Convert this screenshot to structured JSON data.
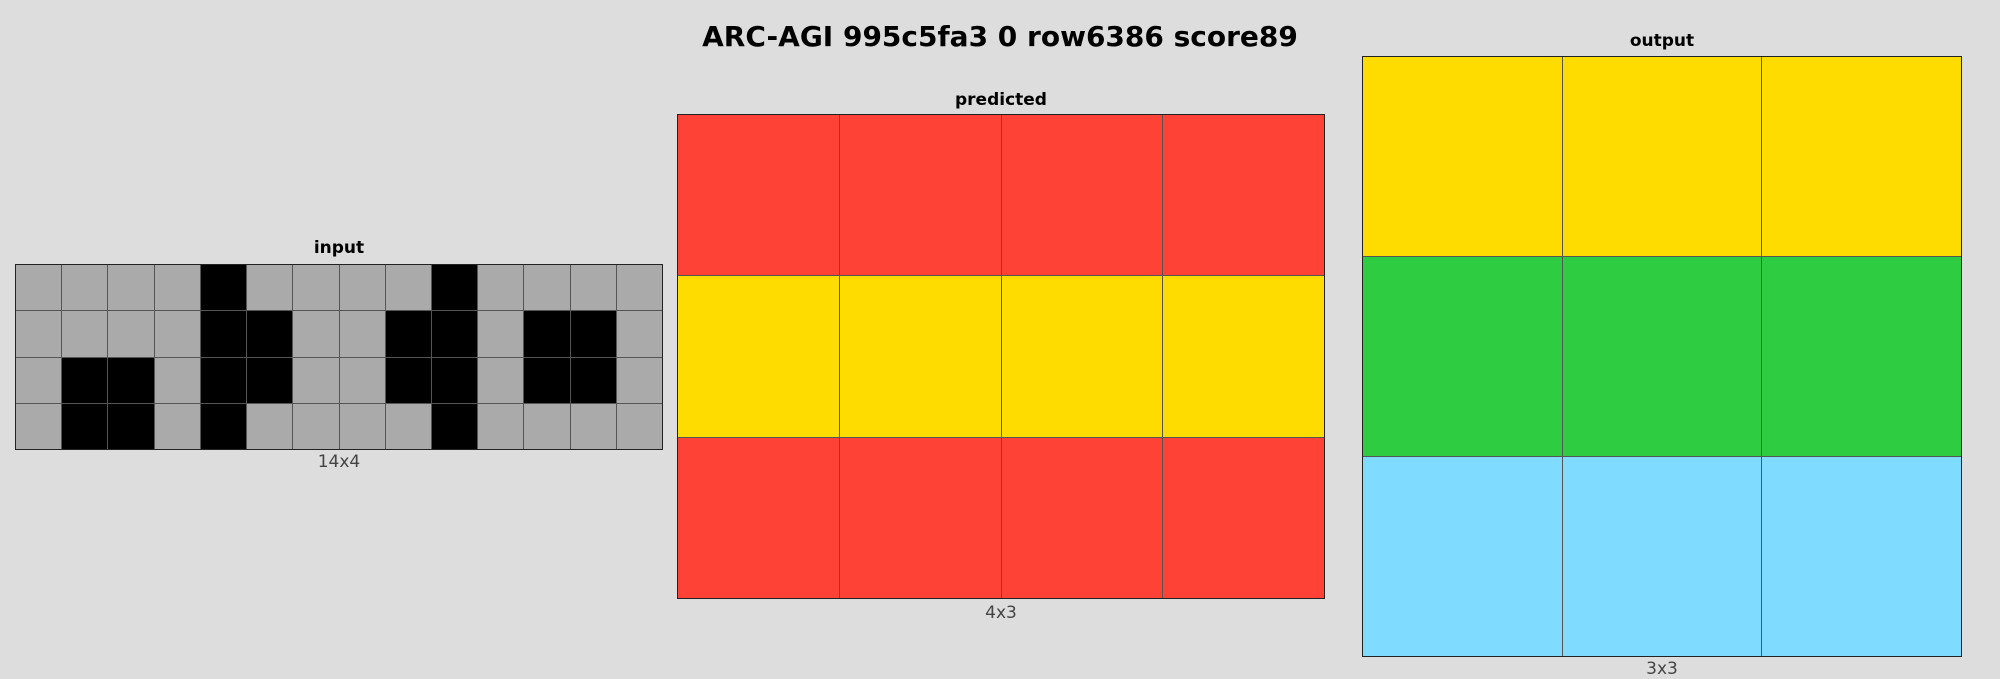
{
  "title": "ARC-AGI 995c5fa3 0 row6386 score89",
  "colors": {
    "0": "#000000",
    "2": "#ff4136",
    "3": "#2ecc40",
    "4": "#ffdc00",
    "5": "#aaaaaa",
    "8": "#7fdbff"
  },
  "panels": [
    {
      "label": "input",
      "dims": "14x4",
      "rows": 4,
      "cols": 14,
      "cells": [
        [
          5,
          5,
          5,
          5,
          0,
          5,
          5,
          5,
          5,
          0,
          5,
          5,
          5,
          5
        ],
        [
          5,
          5,
          5,
          5,
          0,
          0,
          5,
          5,
          0,
          0,
          5,
          0,
          0,
          5
        ],
        [
          5,
          0,
          0,
          5,
          0,
          0,
          5,
          5,
          0,
          0,
          5,
          0,
          0,
          5
        ],
        [
          5,
          0,
          0,
          5,
          0,
          5,
          5,
          5,
          5,
          0,
          5,
          5,
          5,
          5
        ]
      ]
    },
    {
      "label": "predicted",
      "dims": "4x3",
      "rows": 3,
      "cols": 4,
      "cells": [
        [
          2,
          2,
          2,
          2
        ],
        [
          4,
          4,
          4,
          4
        ],
        [
          2,
          2,
          2,
          2
        ]
      ]
    },
    {
      "label": "output",
      "dims": "3x3",
      "rows": 3,
      "cols": 3,
      "cells": [
        [
          4,
          4,
          4
        ],
        [
          3,
          3,
          3
        ],
        [
          8,
          8,
          8
        ]
      ]
    }
  ]
}
